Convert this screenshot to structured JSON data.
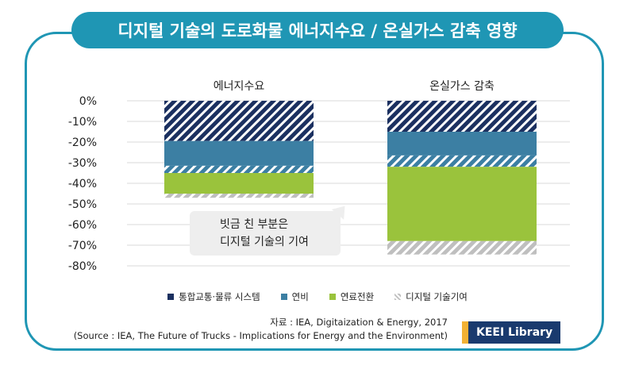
{
  "header": {
    "title": "디지털 기술의 도로화물 에너지수요 / 온실가스 감축 영향"
  },
  "colors": {
    "frame": "#1f96b4",
    "logistics": "#1b3060",
    "fuel_efficiency": "#3c7fa3",
    "fuel_switch": "#9ac33c",
    "digital": "#bfbfbf",
    "callout_bg": "#eeeeee"
  },
  "chart_data": {
    "type": "bar",
    "stacked": true,
    "categories": [
      "에너지수요",
      "온실가스 감축"
    ],
    "yticks": [
      "0%",
      "-10%",
      "-20%",
      "-30%",
      "-40%",
      "-50%",
      "-60%",
      "-70%",
      "-80%"
    ],
    "ylim": [
      -80,
      0
    ],
    "grid": true,
    "series": [
      {
        "name": "통합교통·물류 시스템",
        "color_key": "logistics",
        "pattern": "hatch-dark",
        "values": [
          -19.5,
          -15
        ]
      },
      {
        "name": "연비",
        "color_key": "fuel_efficiency",
        "pattern": "solid",
        "values": [
          -12,
          -11.5
        ]
      },
      {
        "name": "",
        "color_key": "fuel_efficiency",
        "pattern": "hatch-blue",
        "values": [
          -3.5,
          -5.5
        ]
      },
      {
        "name": "연료전환",
        "color_key": "fuel_switch",
        "pattern": "solid",
        "values": [
          -10,
          -36
        ]
      },
      {
        "name": "",
        "color_key": "digital",
        "pattern": "hatch-gray",
        "values": [
          -2,
          -6.5
        ]
      }
    ],
    "legend": [
      {
        "label": "통합교통·물류 시스템",
        "color_key": "logistics"
      },
      {
        "label": "연비",
        "color_key": "fuel_efficiency"
      },
      {
        "label": "연료전환",
        "color_key": "fuel_switch"
      },
      {
        "label": "디지털 기술기여",
        "color_key": "digital"
      }
    ],
    "legend_position": "bottom"
  },
  "callout": {
    "line1": "빗금 친 부분은",
    "line2": "디지털 기술의  기여"
  },
  "source": {
    "line1": "자료 : IEA, Digitaization & Energy, 2017",
    "line2": "(Source : IEA, The Future of Trucks - Implications for Energy and the Environment)"
  },
  "badge": {
    "label": "KEEI Library"
  }
}
